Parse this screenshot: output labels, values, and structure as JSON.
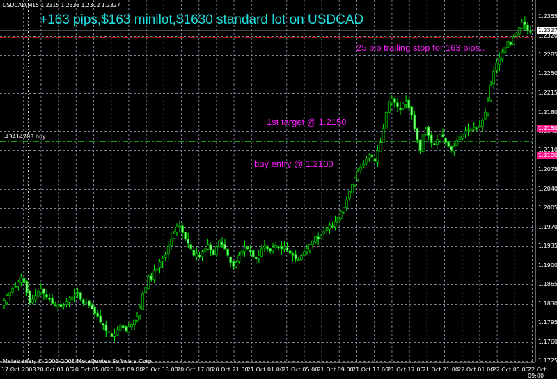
{
  "window": {
    "symbol_line": "USDCAD,M15  1.2315 1.2338 1.2312 1.2327",
    "copyright": "Metatrader, © 2001-2008 MetaQuotes Software Corp."
  },
  "annotations": {
    "headline": "+163 pips,$163 minilot,$1630 standard lot on USDCAD",
    "trailing_stop": "25 pip trailing stop for 163 pips..",
    "first_target": "1st target @ 1.2150",
    "buy_entry": "buy entry @ 1.2100",
    "order_label": "#3414703 buy"
  },
  "price_tags": {
    "bid": "1.2327",
    "target": "1.2150",
    "entry": "1.2100"
  },
  "colors": {
    "background": "#000000",
    "grid": "#7a8599",
    "candle_up": "#00ff00",
    "candle_down": "#000000",
    "candle_outline": "#00c000",
    "headline": "#1ee0e0",
    "annotation": "#ff1aff",
    "level_line": "#d0207a",
    "stop_line": "#cc1010",
    "order_line": "#1a9a1a"
  },
  "chart_data": {
    "type": "candlestick",
    "title": "+163 pips,$163 minilot,$1630 standard lot on USDCAD",
    "symbol": "USDCAD",
    "timeframe": "M15",
    "ohlc_current": {
      "open": 1.2315,
      "high": 1.2338,
      "low": 1.2312,
      "close": 1.2327
    },
    "xlabel": "",
    "ylabel": "",
    "ylim": [
      1.1715,
      1.2375
    ],
    "y_ticks": [
      "1.2355",
      "1.2320",
      "1.2285",
      "1.2250",
      "1.2215",
      "1.2180",
      "1.2145",
      "1.2110",
      "1.2075",
      "1.2040",
      "1.2005",
      "1.1970",
      "1.1935",
      "1.1900",
      "1.1865",
      "1.1830",
      "1.1795",
      "1.1760",
      "1.1725"
    ],
    "x_ticks": [
      "17 Oct 2008",
      "20 Oct 01:00",
      "20 Oct 05:00",
      "20 Oct 09:00",
      "20 Oct 13:00",
      "20 Oct 17:00",
      "20 Oct 21:00",
      "21 Oct 01:00",
      "21 Oct 05:00",
      "21 Oct 09:00",
      "21 Oct 13:00",
      "21 Oct 17:00",
      "21 Oct 21:00",
      "22 Oct 01:00",
      "22 Oct 05:00",
      "22 Oct 09:00"
    ],
    "horizontal_lines": [
      {
        "name": "trailing stop",
        "value": 1.2318,
        "style": "dash-dot",
        "color": "#cc1010"
      },
      {
        "name": "1st target",
        "value": 1.215,
        "style": "solid",
        "color": "#d0207a"
      },
      {
        "name": "buy entry",
        "value": 1.21,
        "style": "solid",
        "color": "#d0207a"
      },
      {
        "name": "order #3414703 buy",
        "value": 1.2127,
        "style": "dash-dot",
        "color": "#1a9a1a"
      }
    ],
    "close_path": [
      1.1835,
      1.1845,
      1.185,
      1.1858,
      1.1862,
      1.187,
      1.1878,
      1.1868,
      1.185,
      1.1832,
      1.1838,
      1.1845,
      1.1852,
      1.1858,
      1.1848,
      1.1842,
      1.1838,
      1.183,
      1.1826,
      1.1828,
      1.1824,
      1.1826,
      1.1834,
      1.184,
      1.1842,
      1.1846,
      1.185,
      1.1838,
      1.183,
      1.1832,
      1.1826,
      1.182,
      1.1812,
      1.1806,
      1.1796,
      1.179,
      1.178,
      1.1778,
      1.177,
      1.1774,
      1.1782,
      1.179,
      1.1786,
      1.178,
      1.1788,
      1.1792,
      1.18,
      1.1806,
      1.182,
      1.1848,
      1.186,
      1.188,
      1.1874,
      1.189,
      1.1895,
      1.1906,
      1.1912,
      1.192,
      1.1935,
      1.1948,
      1.1958,
      1.197,
      1.1972,
      1.196,
      1.1948,
      1.194,
      1.193,
      1.1918,
      1.1922,
      1.1915,
      1.1925,
      1.193,
      1.1938,
      1.1928,
      1.192,
      1.1934,
      1.1945,
      1.1938,
      1.193,
      1.1918,
      1.1905,
      1.1898,
      1.1905,
      1.1918,
      1.1926,
      1.1934,
      1.193,
      1.1924,
      1.1916,
      1.1912,
      1.1918,
      1.193,
      1.1935,
      1.193,
      1.1926,
      1.1932,
      1.1936,
      1.1932,
      1.193,
      1.1934,
      1.1928,
      1.1922,
      1.1918,
      1.1912,
      1.191,
      1.1918,
      1.1925,
      1.193,
      1.1938,
      1.1945,
      1.1952,
      1.1948,
      1.1955,
      1.1962,
      1.1968,
      1.1975,
      1.1972,
      1.198,
      1.1988,
      1.1998,
      1.2006,
      1.202,
      1.2035,
      1.2048,
      1.206,
      1.2072,
      1.208,
      1.2085,
      1.2095,
      1.2102,
      1.2098,
      1.209,
      1.211,
      1.2125,
      1.215,
      1.218,
      1.22,
      1.2205,
      1.2198,
      1.219,
      1.2185,
      1.2195,
      1.22,
      1.2188,
      1.2175,
      1.215,
      1.213,
      1.211,
      1.214,
      1.215,
      1.2138,
      1.2125,
      1.212,
      1.213,
      1.214,
      1.2135,
      1.2125,
      1.2118,
      1.2112,
      1.2118,
      1.2128,
      1.2135,
      1.214,
      1.2145,
      1.2148,
      1.215,
      1.2152,
      1.215,
      1.2155,
      1.2165,
      1.218,
      1.22,
      1.223,
      1.2255,
      1.227,
      1.228,
      1.229,
      1.23,
      1.231,
      1.2305,
      1.2318,
      1.2325,
      1.2335,
      1.2345,
      1.234,
      1.233,
      1.2327
    ]
  }
}
